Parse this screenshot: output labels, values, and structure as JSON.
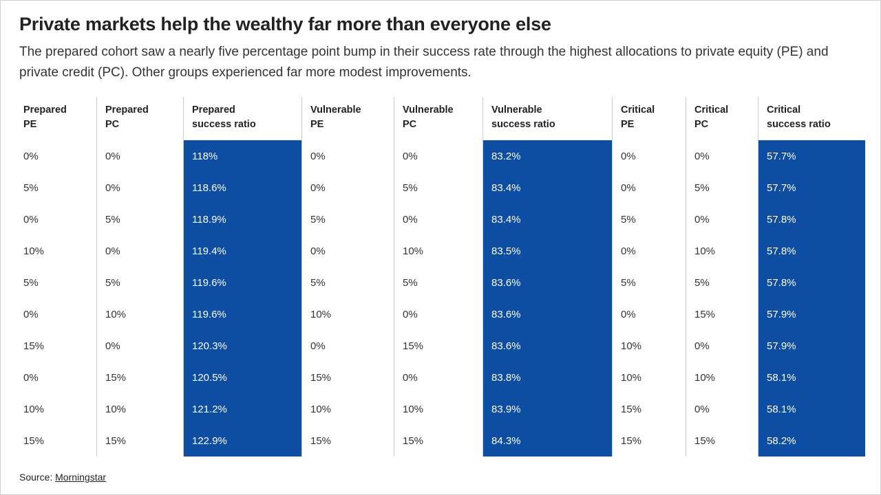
{
  "header": {
    "title": "Private markets help the wealthy far more than everyone else",
    "subtitle": "The prepared cohort saw a nearly five percentage point bump in their success rate through the highest allocations to private equity (PE) and private credit (PC). Other groups experienced far more modest improvements."
  },
  "footer": {
    "source_label": "Source:",
    "source_link_text": "Morningstar"
  },
  "colors": {
    "highlight_blue": "#0d4da2",
    "title_text": "#222222",
    "body_text": "#333333",
    "grid_line": "#cccccc"
  },
  "chart_data": {
    "type": "table",
    "title": "Private markets help the wealthy far more than everyone else",
    "columns": [
      {
        "group": "Prepared",
        "metric": "PE",
        "highlight": false
      },
      {
        "group": "Prepared",
        "metric": "PC",
        "highlight": false
      },
      {
        "group": "Prepared",
        "metric": "success ratio",
        "highlight": true
      },
      {
        "group": "Vulnerable",
        "metric": "PE",
        "highlight": false
      },
      {
        "group": "Vulnerable",
        "metric": "PC",
        "highlight": false
      },
      {
        "group": "Vulnerable",
        "metric": "success ratio",
        "highlight": true
      },
      {
        "group": "Critical",
        "metric": "PE",
        "highlight": false
      },
      {
        "group": "Critical",
        "metric": "PC",
        "highlight": false
      },
      {
        "group": "Critical",
        "metric": "success ratio",
        "highlight": true
      }
    ],
    "rows": [
      [
        "0%",
        "0%",
        "118%",
        "0%",
        "0%",
        "83.2%",
        "0%",
        "0%",
        "57.7%"
      ],
      [
        "5%",
        "0%",
        "118.6%",
        "0%",
        "5%",
        "83.4%",
        "0%",
        "5%",
        "57.7%"
      ],
      [
        "0%",
        "5%",
        "118.9%",
        "5%",
        "0%",
        "83.4%",
        "5%",
        "0%",
        "57.8%"
      ],
      [
        "10%",
        "0%",
        "119.4%",
        "0%",
        "10%",
        "83.5%",
        "0%",
        "10%",
        "57.8%"
      ],
      [
        "5%",
        "5%",
        "119.6%",
        "5%",
        "5%",
        "83.6%",
        "5%",
        "5%",
        "57.8%"
      ],
      [
        "0%",
        "10%",
        "119.6%",
        "10%",
        "0%",
        "83.6%",
        "0%",
        "15%",
        "57.9%"
      ],
      [
        "15%",
        "0%",
        "120.3%",
        "0%",
        "15%",
        "83.6%",
        "10%",
        "0%",
        "57.9%"
      ],
      [
        "0%",
        "15%",
        "120.5%",
        "15%",
        "0%",
        "83.8%",
        "10%",
        "10%",
        "58.1%"
      ],
      [
        "10%",
        "10%",
        "121.2%",
        "10%",
        "10%",
        "83.9%",
        "15%",
        "0%",
        "58.1%"
      ],
      [
        "15%",
        "15%",
        "122.9%",
        "15%",
        "15%",
        "84.3%",
        "15%",
        "15%",
        "58.2%"
      ]
    ]
  }
}
